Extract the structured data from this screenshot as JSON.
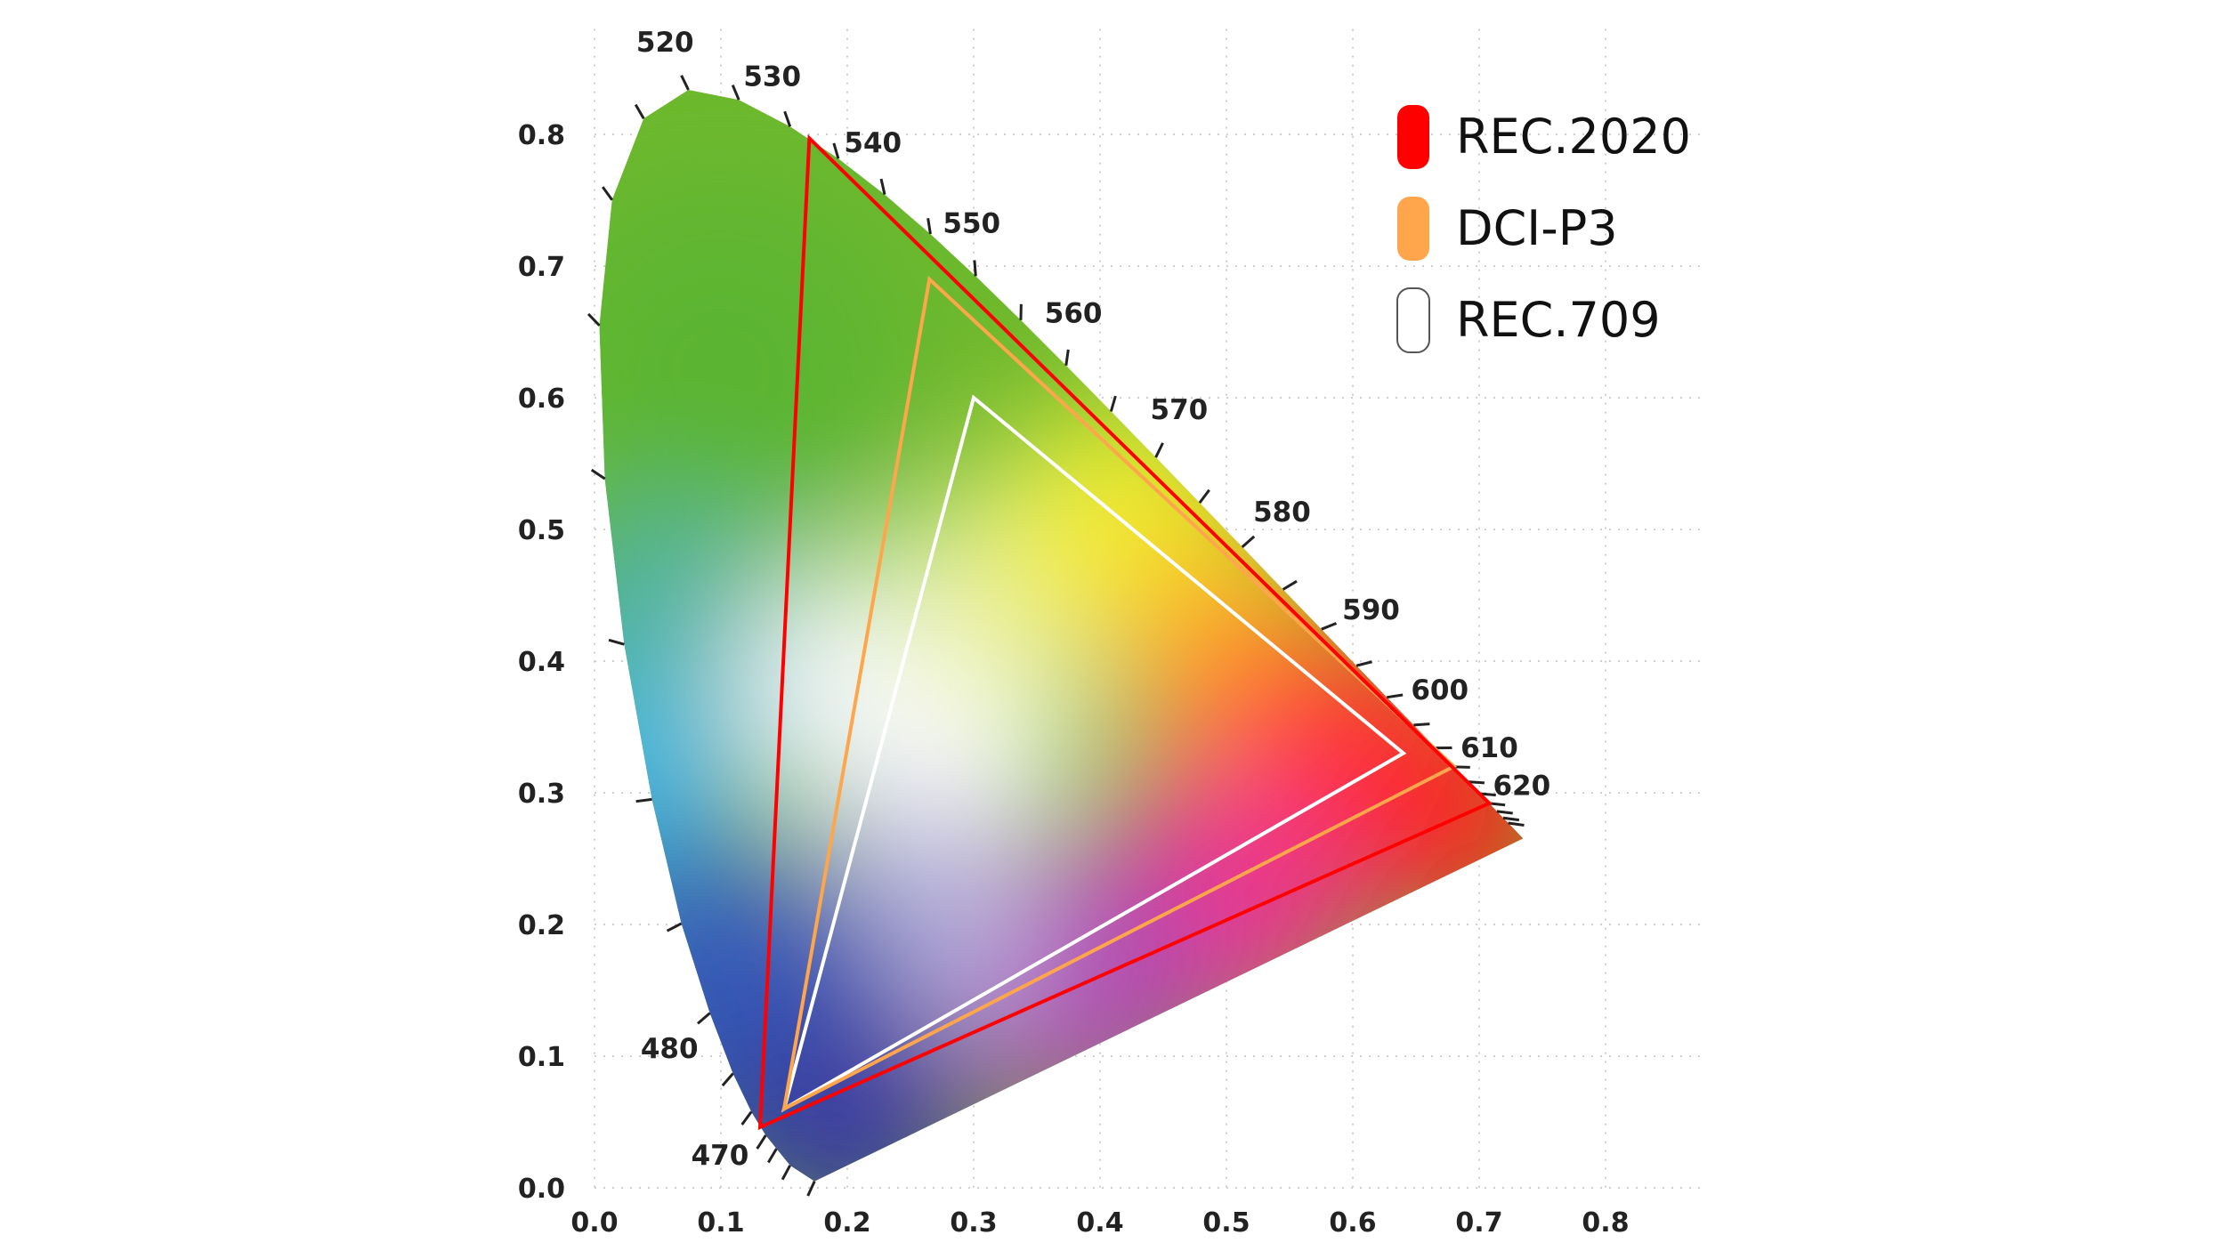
{
  "chart_data": {
    "type": "scatter",
    "title": "",
    "xlabel": "",
    "ylabel": "",
    "xlim": [
      0,
      0.9
    ],
    "ylim": [
      0,
      0.9
    ],
    "x_ticks": [
      "0.0",
      "0.1",
      "0.2",
      "0.3",
      "0.4",
      "0.5",
      "0.6",
      "0.7",
      "0.8"
    ],
    "y_ticks": [
      "0.0",
      "0.1",
      "0.2",
      "0.3",
      "0.4",
      "0.5",
      "0.6",
      "0.7",
      "0.8"
    ],
    "grid": true,
    "legend_position": "top-right",
    "spectral_locus": {
      "points": [
        [
          0.1741,
          0.005
        ],
        [
          0.1547,
          0.017
        ],
        [
          0.144,
          0.0297
        ],
        [
          0.1355,
          0.0399
        ],
        [
          0.1241,
          0.0578
        ],
        [
          0.1096,
          0.0868
        ],
        [
          0.0913,
          0.1327
        ],
        [
          0.0687,
          0.2007
        ],
        [
          0.0454,
          0.295
        ],
        [
          0.0235,
          0.4127
        ],
        [
          0.0082,
          0.5384
        ],
        [
          0.0039,
          0.6548
        ],
        [
          0.0139,
          0.7502
        ],
        [
          0.0389,
          0.812
        ],
        [
          0.0743,
          0.8338
        ],
        [
          0.1142,
          0.8262
        ],
        [
          0.1547,
          0.8059
        ],
        [
          0.1929,
          0.7816
        ],
        [
          0.2296,
          0.7543
        ],
        [
          0.2658,
          0.7243
        ],
        [
          0.3016,
          0.6923
        ],
        [
          0.3373,
          0.6589
        ],
        [
          0.3731,
          0.6245
        ],
        [
          0.4087,
          0.5896
        ],
        [
          0.4441,
          0.5547
        ],
        [
          0.4788,
          0.5202
        ],
        [
          0.5125,
          0.4866
        ],
        [
          0.5448,
          0.4544
        ],
        [
          0.5752,
          0.4242
        ],
        [
          0.6029,
          0.3965
        ],
        [
          0.627,
          0.3725
        ],
        [
          0.6482,
          0.3514
        ],
        [
          0.6658,
          0.334
        ],
        [
          0.6801,
          0.3197
        ],
        [
          0.6915,
          0.3083
        ],
        [
          0.7006,
          0.2993
        ],
        [
          0.7079,
          0.292
        ],
        [
          0.714,
          0.2859
        ],
        [
          0.719,
          0.2809
        ],
        [
          0.723,
          0.277
        ],
        [
          0.7347,
          0.2653
        ]
      ],
      "wavelength_labels": [
        {
          "label": "470",
          "x": 0.1241,
          "y": 0.0578
        },
        {
          "label": "480",
          "x": 0.0913,
          "y": 0.1327
        },
        {
          "label": "520",
          "x": 0.0743,
          "y": 0.8338
        },
        {
          "label": "530",
          "x": 0.1547,
          "y": 0.8059
        },
        {
          "label": "540",
          "x": 0.2296,
          "y": 0.7543
        },
        {
          "label": "550",
          "x": 0.3016,
          "y": 0.6923
        },
        {
          "label": "560",
          "x": 0.3731,
          "y": 0.6245
        },
        {
          "label": "570",
          "x": 0.4441,
          "y": 0.5547
        },
        {
          "label": "580",
          "x": 0.5125,
          "y": 0.4866
        },
        {
          "label": "590",
          "x": 0.5752,
          "y": 0.4242
        },
        {
          "label": "600",
          "x": 0.627,
          "y": 0.3725
        },
        {
          "label": "610",
          "x": 0.6658,
          "y": 0.334
        },
        {
          "label": "620",
          "x": 0.6915,
          "y": 0.3083
        }
      ]
    },
    "series": [
      {
        "name": "REC.2020",
        "color": "#ff0000",
        "points": [
          [
            0.708,
            0.292
          ],
          [
            0.17,
            0.797
          ],
          [
            0.131,
            0.046
          ]
        ]
      },
      {
        "name": "DCI-P3",
        "color": "#ffa64d",
        "points": [
          [
            0.68,
            0.32
          ],
          [
            0.265,
            0.69
          ],
          [
            0.15,
            0.06
          ]
        ]
      },
      {
        "name": "REC.709",
        "color": "#ffffff",
        "points": [
          [
            0.64,
            0.33
          ],
          [
            0.3,
            0.6
          ],
          [
            0.15,
            0.06
          ]
        ]
      }
    ],
    "legend": [
      {
        "label": "REC.2020",
        "color": "#ff0000"
      },
      {
        "label": "DCI-P3",
        "color": "#ffa64d"
      },
      {
        "label": "REC.709",
        "color": "#ffffff"
      }
    ]
  }
}
